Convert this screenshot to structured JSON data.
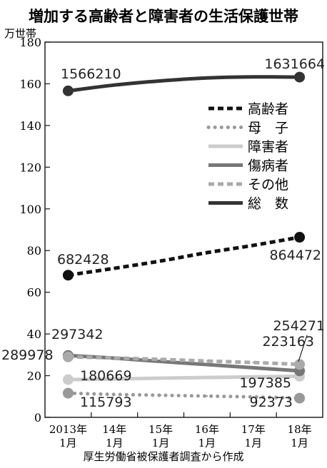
{
  "chart_data": {
    "type": "line",
    "title": "増加する高齢者と障害者の生活保護世帯",
    "ylabel": "万世帯",
    "ylim": [
      0,
      180
    ],
    "yticks": [
      0,
      20,
      40,
      60,
      80,
      100,
      120,
      140,
      160,
      180
    ],
    "categories": [
      {
        "top": "2013年",
        "bottom": "1月"
      },
      {
        "top": "14年",
        "bottom": "1月"
      },
      {
        "top": "15年",
        "bottom": "1月"
      },
      {
        "top": "16年",
        "bottom": "1月"
      },
      {
        "top": "17年",
        "bottom": "1月"
      },
      {
        "top": "18年",
        "bottom": "1月"
      }
    ],
    "source": "厚生労働省被保護者調査から作成",
    "grid": false,
    "legend_position": "top-right",
    "series": [
      {
        "name": "高齢者",
        "style": "dashed",
        "color": "#111111",
        "values": [
          68.2,
          71.5,
          75.0,
          79.0,
          82.5,
          86.4
        ],
        "labels": [
          "682428",
          null,
          null,
          null,
          null,
          "864472"
        ]
      },
      {
        "name": "母　子",
        "style": "dotted",
        "color": "#999999",
        "values": [
          11.6,
          11.0,
          10.6,
          10.2,
          9.8,
          9.2
        ],
        "labels": [
          "115793",
          null,
          null,
          null,
          null,
          "92373"
        ]
      },
      {
        "name": "障害者",
        "style": "solid",
        "color": "#cccccc",
        "values": [
          18.1,
          18.4,
          18.8,
          19.1,
          19.4,
          19.7
        ],
        "labels": [
          "180669",
          null,
          null,
          null,
          null,
          "197385"
        ]
      },
      {
        "name": "傷病者",
        "style": "solid",
        "color": "#777777",
        "values": [
          29.7,
          28.4,
          26.8,
          25.3,
          23.8,
          22.3
        ],
        "labels": [
          "297342",
          null,
          null,
          null,
          null,
          "223163"
        ]
      },
      {
        "name": "その他",
        "style": "dashed",
        "color": "#aaaaaa",
        "values": [
          29.0,
          28.5,
          27.8,
          27.0,
          26.3,
          25.4
        ],
        "labels": [
          "289978",
          null,
          null,
          null,
          null,
          "254271"
        ]
      },
      {
        "name": "総　数",
        "style": "solid",
        "color": "#333333",
        "values": [
          156.6,
          159.4,
          161.4,
          162.8,
          163.3,
          163.2
        ],
        "labels": [
          "1566210",
          null,
          null,
          null,
          null,
          "1631664"
        ]
      }
    ]
  }
}
